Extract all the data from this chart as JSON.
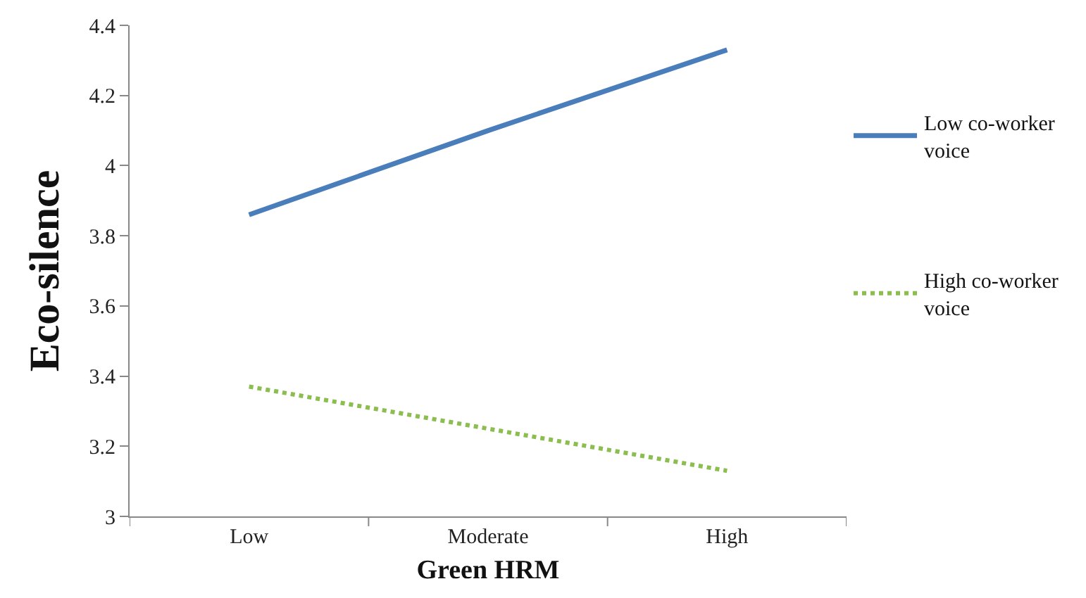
{
  "chart_data": {
    "type": "line",
    "xlabel": "Green HRM",
    "ylabel": "Eco-silence",
    "categories": [
      "Low",
      "Moderate",
      "High"
    ],
    "series": [
      {
        "name": "Low co-worker voice",
        "color": "#4a7ebb",
        "values": [
          3.86,
          4.1,
          4.33
        ],
        "line_style": "solid"
      },
      {
        "name": "High co-worker voice",
        "color": "#8cbd4f",
        "values": [
          3.37,
          3.25,
          3.13
        ],
        "line_style": "dotted"
      }
    ],
    "ylim": [
      3,
      4.4
    ],
    "yticks": [
      3,
      3.2,
      3.4,
      3.6,
      3.8,
      4,
      4.2,
      4.4
    ],
    "legend": "right",
    "marker": "none"
  }
}
